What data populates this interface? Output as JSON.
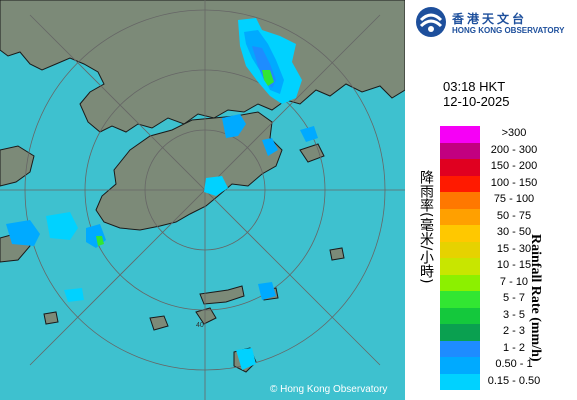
{
  "header": {
    "org_name_cn": "香港天文台",
    "org_name_en": "HONG KONG OBSERVATORY"
  },
  "observation": {
    "time": "03:18 HKT",
    "date": "12-10-2025"
  },
  "map": {
    "copyright": "© Hong Kong Observatory",
    "range_ring_label": "40",
    "sea_color": "#3ec1cf",
    "land_color": "#7c8a78"
  },
  "legend": {
    "title_cn": "降雨率(毫米/小時)",
    "title_en": "Rainfall Rate (mm/h)",
    "items": [
      {
        "range": ">300",
        "color": "#f600f6"
      },
      {
        "range": "200 - 300",
        "color": "#c20080"
      },
      {
        "range": "150 - 200",
        "color": "#e00020"
      },
      {
        "range": "100 - 150",
        "color": "#ff1a00"
      },
      {
        "range": "75 - 100",
        "color": "#ff7800"
      },
      {
        "range": "50 - 75",
        "color": "#ffa000"
      },
      {
        "range": "30 - 50",
        "color": "#ffc800"
      },
      {
        "range": "15 - 30",
        "color": "#e6d200"
      },
      {
        "range": "10 - 15",
        "color": "#c8e600"
      },
      {
        "range": "7 - 10",
        "color": "#8cf000"
      },
      {
        "range": "5 - 7",
        "color": "#32e632"
      },
      {
        "range": "3 - 5",
        "color": "#14c83c"
      },
      {
        "range": "2 - 3",
        "color": "#0aa050"
      },
      {
        "range": "1 - 2",
        "color": "#1e8cff"
      },
      {
        "range": "0.50 - 1",
        "color": "#00aaff"
      },
      {
        "range": "0.15 - 0.50",
        "color": "#00d2ff"
      }
    ]
  }
}
